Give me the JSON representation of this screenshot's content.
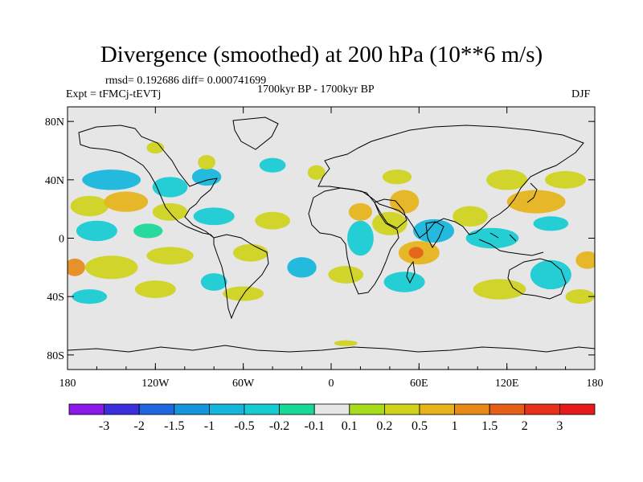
{
  "chart_data": {
    "type": "heatmap",
    "title": "Divergence (smoothed) at 200 hPa (10**6 m/s)",
    "stats_line": "rmsd= 0.192686 diff= 0.000741699",
    "experiment": "Expt = tFMCj-tEVTj",
    "period": "1700kyr BP - 1700kyr BP",
    "season": "DJF",
    "lon_range": [
      -180,
      180
    ],
    "lat_range": [
      -90,
      90
    ],
    "lon_ticks": [
      {
        "value": -180,
        "label": "180"
      },
      {
        "value": -120,
        "label": "120W"
      },
      {
        "value": -60,
        "label": "60W"
      },
      {
        "value": 0,
        "label": "0"
      },
      {
        "value": 60,
        "label": "60E"
      },
      {
        "value": 120,
        "label": "120E"
      },
      {
        "value": 180,
        "label": "180"
      }
    ],
    "lat_ticks": [
      {
        "value": 80,
        "label": "80N"
      },
      {
        "value": 40,
        "label": "40N"
      },
      {
        "value": 0,
        "label": "0"
      },
      {
        "value": -40,
        "label": "40S"
      },
      {
        "value": -80,
        "label": "80S"
      }
    ],
    "colorbar": {
      "levels": [
        "-3",
        "-2",
        "-1.5",
        "-1",
        "-0.5",
        "-0.2",
        "-0.1",
        "0.1",
        "0.2",
        "0.5",
        "1",
        "1.5",
        "2",
        "3"
      ],
      "colors": [
        "#8a19e8",
        "#3b2fdc",
        "#1f66df",
        "#1596dc",
        "#14b6dc",
        "#14ccd2",
        "#18d89a",
        "#e6e6e6",
        "#a6dc1c",
        "#cfd21a",
        "#e6b419",
        "#e68a19",
        "#e65f19",
        "#e6301a",
        "#e61a1a"
      ]
    },
    "anomalies": [
      {
        "lon": -165,
        "lat": 22,
        "rx": 13,
        "ry": 7,
        "level": 9
      },
      {
        "lon": -140,
        "lat": 25,
        "rx": 15,
        "ry": 7,
        "level": 10
      },
      {
        "lon": -110,
        "lat": 18,
        "rx": 12,
        "ry": 6,
        "level": 9
      },
      {
        "lon": -150,
        "lat": 40,
        "rx": 20,
        "ry": 7,
        "level": 4
      },
      {
        "lon": -110,
        "lat": 35,
        "rx": 12,
        "ry": 7,
        "level": 5
      },
      {
        "lon": -85,
        "lat": 42,
        "rx": 10,
        "ry": 6,
        "level": 4
      },
      {
        "lon": -120,
        "lat": 62,
        "rx": 6,
        "ry": 4,
        "level": 9
      },
      {
        "lon": -85,
        "lat": 52,
        "rx": 6,
        "ry": 5,
        "level": 9
      },
      {
        "lon": -40,
        "lat": 50,
        "rx": 9,
        "ry": 5,
        "level": 5
      },
      {
        "lon": -160,
        "lat": 5,
        "rx": 14,
        "ry": 7,
        "level": 5
      },
      {
        "lon": -125,
        "lat": 5,
        "rx": 10,
        "ry": 5,
        "level": 6
      },
      {
        "lon": -80,
        "lat": 15,
        "rx": 14,
        "ry": 6,
        "level": 5
      },
      {
        "lon": -40,
        "lat": 12,
        "rx": 12,
        "ry": 6,
        "level": 9
      },
      {
        "lon": -110,
        "lat": -12,
        "rx": 16,
        "ry": 6,
        "level": 9
      },
      {
        "lon": -55,
        "lat": -10,
        "rx": 12,
        "ry": 6,
        "level": 9
      },
      {
        "lon": -150,
        "lat": -20,
        "rx": 18,
        "ry": 8,
        "level": 9
      },
      {
        "lon": -175,
        "lat": -20,
        "rx": 7,
        "ry": 6,
        "level": 11
      },
      {
        "lon": -165,
        "lat": -40,
        "rx": 12,
        "ry": 5,
        "level": 5
      },
      {
        "lon": -120,
        "lat": -35,
        "rx": 14,
        "ry": 6,
        "level": 9
      },
      {
        "lon": -80,
        "lat": -30,
        "rx": 9,
        "ry": 6,
        "level": 5
      },
      {
        "lon": -60,
        "lat": -38,
        "rx": 14,
        "ry": 5,
        "level": 9
      },
      {
        "lon": -20,
        "lat": -20,
        "rx": 10,
        "ry": 7,
        "level": 4
      },
      {
        "lon": 10,
        "lat": -25,
        "rx": 12,
        "ry": 6,
        "level": 9
      },
      {
        "lon": 20,
        "lat": 0,
        "rx": 9,
        "ry": 12,
        "level": 5
      },
      {
        "lon": 40,
        "lat": 10,
        "rx": 12,
        "ry": 8,
        "level": 9
      },
      {
        "lon": 20,
        "lat": 18,
        "rx": 8,
        "ry": 6,
        "level": 10
      },
      {
        "lon": 50,
        "lat": 25,
        "rx": 10,
        "ry": 8,
        "level": 10
      },
      {
        "lon": 60,
        "lat": -10,
        "rx": 14,
        "ry": 8,
        "level": 10
      },
      {
        "lon": 58,
        "lat": -10,
        "rx": 5,
        "ry": 4,
        "level": 12
      },
      {
        "lon": 50,
        "lat": -30,
        "rx": 14,
        "ry": 7,
        "level": 5
      },
      {
        "lon": 70,
        "lat": 5,
        "rx": 14,
        "ry": 8,
        "level": 4
      },
      {
        "lon": 95,
        "lat": 15,
        "rx": 12,
        "ry": 7,
        "level": 9
      },
      {
        "lon": 110,
        "lat": 0,
        "rx": 18,
        "ry": 7,
        "level": 5
      },
      {
        "lon": 115,
        "lat": -35,
        "rx": 18,
        "ry": 7,
        "level": 9
      },
      {
        "lon": 150,
        "lat": -25,
        "rx": 14,
        "ry": 10,
        "level": 5
      },
      {
        "lon": 170,
        "lat": -40,
        "rx": 10,
        "ry": 5,
        "level": 9
      },
      {
        "lon": 140,
        "lat": 25,
        "rx": 20,
        "ry": 8,
        "level": 10
      },
      {
        "lon": 120,
        "lat": 40,
        "rx": 14,
        "ry": 7,
        "level": 9
      },
      {
        "lon": 160,
        "lat": 40,
        "rx": 14,
        "ry": 6,
        "level": 9
      },
      {
        "lon": 150,
        "lat": 10,
        "rx": 12,
        "ry": 5,
        "level": 5
      },
      {
        "lon": 175,
        "lat": -15,
        "rx": 8,
        "ry": 6,
        "level": 10
      },
      {
        "lon": 45,
        "lat": 42,
        "rx": 10,
        "ry": 5,
        "level": 9
      },
      {
        "lon": -10,
        "lat": 45,
        "rx": 6,
        "ry": 5,
        "level": 9
      },
      {
        "lon": 10,
        "lat": -72,
        "rx": 8,
        "ry": 2,
        "level": 9
      }
    ]
  }
}
